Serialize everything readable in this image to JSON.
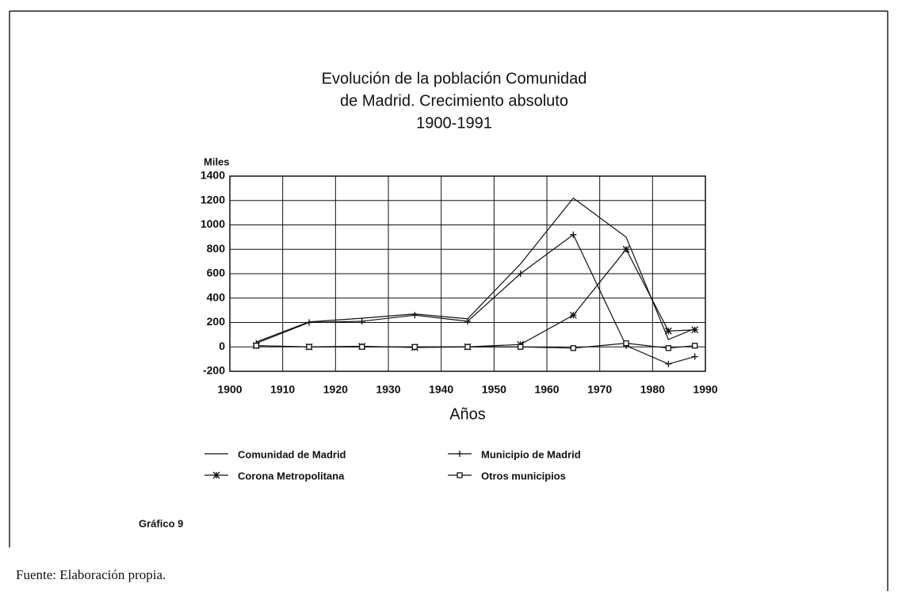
{
  "chart_data": {
    "type": "line",
    "title_lines": [
      "Evolución de la población Comunidad",
      "de Madrid. Crecimiento absoluto",
      "1900-1991"
    ],
    "y_label": "Miles",
    "x_label": "Años",
    "x": [
      1905,
      1915,
      1925,
      1935,
      1945,
      1955,
      1965,
      1975,
      1983,
      1988
    ],
    "series": [
      {
        "name": "Comunidad de Madrid",
        "marker": "none",
        "color": "#111111",
        "values": [
          40,
          205,
          235,
          270,
          230,
          680,
          1220,
          900,
          60,
          150
        ]
      },
      {
        "name": "Municipio de Madrid",
        "marker": "plus",
        "color": "#111111",
        "values": [
          30,
          200,
          210,
          260,
          210,
          600,
          920,
          10,
          -140,
          -80
        ]
      },
      {
        "name": "Corona Metropolitana",
        "marker": "star",
        "color": "#111111",
        "values": [
          10,
          0,
          5,
          -5,
          0,
          20,
          260,
          800,
          130,
          140
        ]
      },
      {
        "name": "Otros municipios",
        "marker": "square",
        "color": "#111111",
        "values": [
          10,
          0,
          0,
          0,
          0,
          0,
          -10,
          30,
          -10,
          10
        ]
      }
    ],
    "xlim": [
      1900,
      1990
    ],
    "xticks": [
      1900,
      1910,
      1920,
      1930,
      1940,
      1950,
      1960,
      1970,
      1980,
      1990
    ],
    "ylim": [
      -200,
      1400
    ],
    "yticks": [
      -200,
      0,
      200,
      400,
      600,
      800,
      1000,
      1200,
      1400
    ],
    "grid": true,
    "caption": "Gráfico 9",
    "source": "Fuente: Elaboración propia."
  }
}
